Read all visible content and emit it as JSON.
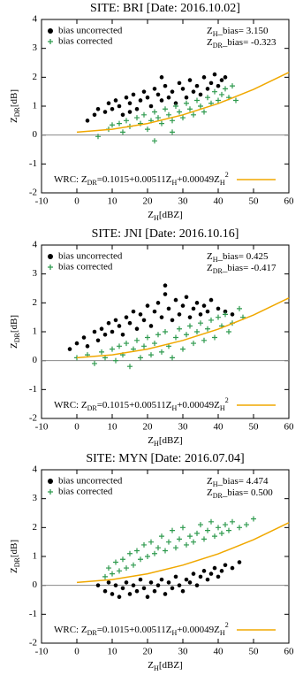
{
  "chart_data": [
    {
      "type": "scatter",
      "title": "SITE: BRI [Date: 2016.10.02]",
      "xlabel": [
        {
          "text": "Z"
        },
        {
          "text": "H",
          "pos": "sub"
        },
        {
          "text": "[dBZ]"
        }
      ],
      "ylabel": [
        {
          "text": "Z"
        },
        {
          "text": "DR",
          "pos": "sub"
        },
        {
          "text": "[dB]"
        }
      ],
      "xlim": [
        -10,
        60
      ],
      "xticks": [
        -10,
        0,
        10,
        20,
        30,
        40,
        50,
        60
      ],
      "ylim": [
        -2,
        4
      ],
      "yticks": [
        -2,
        -1,
        0,
        1,
        2,
        3,
        4
      ],
      "zero_line": 0,
      "annotations": [
        [
          {
            "text": "Z"
          },
          {
            "text": "H",
            "pos": "sub"
          },
          {
            "text": "_bias= 3.150"
          }
        ],
        [
          {
            "text": "Z"
          },
          {
            "text": "DR",
            "pos": "sub"
          },
          {
            "text": "_bias= -0.323"
          }
        ]
      ],
      "series": [
        {
          "name": "bias uncorrected",
          "color": "#000000",
          "marker": "circle",
          "x": [
            3,
            5,
            6,
            8,
            9,
            10,
            11,
            12,
            13,
            14,
            15,
            16,
            17,
            18,
            19,
            20,
            21,
            22,
            23,
            24,
            25,
            26,
            27,
            28,
            29,
            30,
            31,
            32,
            33,
            34,
            35,
            36,
            37,
            38,
            39,
            40,
            41,
            42,
            24,
            15
          ],
          "values": [
            0.5,
            0.7,
            0.9,
            0.8,
            1.1,
            0.9,
            1.2,
            1.0,
            0.7,
            1.3,
            1.1,
            1.4,
            0.9,
            1.2,
            1.5,
            1.3,
            1.0,
            1.6,
            1.4,
            1.2,
            1.7,
            1.3,
            1.5,
            1.1,
            1.8,
            1.6,
            1.3,
            1.9,
            1.5,
            1.7,
            1.4,
            2.0,
            1.6,
            1.8,
            2.1,
            1.7,
            1.9,
            2.0,
            2.0,
            0.8
          ]
        },
        {
          "name": "bias corrected",
          "color": "#2e9a4e",
          "marker": "plus",
          "x": [
            6,
            9,
            10,
            12,
            13,
            14,
            15,
            17,
            18,
            19,
            20,
            21,
            22,
            23,
            24,
            25,
            26,
            27,
            28,
            29,
            30,
            31,
            32,
            33,
            34,
            35,
            36,
            37,
            38,
            39,
            40,
            41,
            42,
            43,
            44,
            45,
            22,
            27
          ],
          "values": [
            -0.05,
            0.2,
            0.35,
            0.4,
            0.1,
            0.5,
            0.3,
            0.6,
            0.4,
            0.7,
            0.2,
            0.5,
            0.8,
            0.6,
            0.4,
            0.9,
            0.7,
            0.5,
            1.0,
            0.8,
            0.6,
            1.1,
            0.9,
            0.7,
            1.2,
            1.0,
            0.8,
            1.3,
            1.1,
            1.5,
            1.2,
            1.4,
            1.6,
            1.3,
            1.7,
            1.2,
            -0.2,
            0.1
          ]
        }
      ],
      "fit": {
        "color": "#f0a800",
        "name": [
          {
            "text": "WRC: Z"
          },
          {
            "text": "DR",
            "pos": "sub"
          },
          {
            "text": "=0.1015+0.00511Z"
          },
          {
            "text": "H",
            "pos": "sub"
          },
          {
            "text": "+0.00049Z"
          },
          {
            "text": "H",
            "pos": "sub"
          },
          {
            "text": "2",
            "pos": "super"
          }
        ],
        "x": [
          0,
          10,
          20,
          30,
          40,
          50,
          60
        ],
        "values": [
          0.1,
          0.2,
          0.4,
          0.7,
          1.09,
          1.58,
          2.17
        ]
      }
    },
    {
      "type": "scatter",
      "title": "SITE: JNI [Date: 2016.10.16]",
      "xlabel": [
        {
          "text": "Z"
        },
        {
          "text": "H",
          "pos": "sub"
        },
        {
          "text": "[dBZ]"
        }
      ],
      "ylabel": [
        {
          "text": "Z"
        },
        {
          "text": "DR",
          "pos": "sub"
        },
        {
          "text": "[dB]"
        }
      ],
      "xlim": [
        -10,
        60
      ],
      "xticks": [
        -10,
        0,
        10,
        20,
        30,
        40,
        50,
        60
      ],
      "ylim": [
        -2,
        4
      ],
      "yticks": [
        -2,
        -1,
        0,
        1,
        2,
        3,
        4
      ],
      "zero_line": 0,
      "annotations": [
        [
          {
            "text": "Z"
          },
          {
            "text": "H",
            "pos": "sub"
          },
          {
            "text": "_bias= 0.425"
          }
        ],
        [
          {
            "text": "Z"
          },
          {
            "text": "DR",
            "pos": "sub"
          },
          {
            "text": "_bias= -0.417"
          }
        ]
      ],
      "series": [
        {
          "name": "bias uncorrected",
          "color": "#000000",
          "marker": "circle",
          "x": [
            -2,
            0,
            2,
            3,
            5,
            6,
            7,
            8,
            9,
            10,
            11,
            12,
            13,
            14,
            15,
            16,
            17,
            18,
            19,
            20,
            21,
            22,
            23,
            24,
            25,
            26,
            27,
            28,
            29,
            30,
            31,
            32,
            33,
            34,
            35,
            36,
            37,
            38,
            40,
            42,
            44,
            25
          ],
          "values": [
            0.4,
            0.6,
            0.8,
            0.5,
            1.0,
            0.7,
            1.1,
            0.9,
            1.3,
            1.0,
            1.4,
            1.2,
            0.9,
            1.5,
            1.3,
            1.7,
            1.1,
            1.6,
            1.4,
            1.9,
            1.2,
            1.7,
            2.0,
            1.5,
            2.6,
            1.8,
            1.4,
            2.1,
            1.6,
            1.9,
            2.2,
            1.5,
            1.8,
            2.0,
            1.6,
            1.9,
            1.7,
            2.1,
            1.8,
            1.7,
            1.6,
            2.3
          ]
        },
        {
          "name": "bias corrected",
          "color": "#2e9a4e",
          "marker": "plus",
          "x": [
            0,
            3,
            5,
            7,
            8,
            10,
            11,
            12,
            13,
            14,
            15,
            16,
            17,
            18,
            19,
            20,
            21,
            22,
            23,
            24,
            25,
            26,
            27,
            28,
            29,
            30,
            31,
            32,
            33,
            34,
            35,
            36,
            37,
            38,
            39,
            40,
            41,
            42,
            43,
            44,
            46,
            47
          ],
          "values": [
            0.1,
            0.2,
            -0.1,
            0.3,
            0.1,
            0.4,
            0.0,
            0.5,
            0.2,
            0.6,
            -0.2,
            0.4,
            0.7,
            0.1,
            0.5,
            0.8,
            0.2,
            0.6,
            0.9,
            0.3,
            1.0,
            0.5,
            0.1,
            0.8,
            1.1,
            0.4,
            0.9,
            1.2,
            0.6,
            1.0,
            1.3,
            0.7,
            1.1,
            1.4,
            0.8,
            1.5,
            1.2,
            1.6,
            1.0,
            1.3,
            1.8,
            1.5
          ]
        }
      ],
      "fit": {
        "color": "#f0a800",
        "name": [
          {
            "text": "WRC: Z"
          },
          {
            "text": "DR",
            "pos": "sub"
          },
          {
            "text": "=0.1015+0.00511Z"
          },
          {
            "text": "H",
            "pos": "sub"
          },
          {
            "text": "+0.00049Z"
          },
          {
            "text": "H",
            "pos": "sub"
          },
          {
            "text": "2",
            "pos": "super"
          }
        ],
        "x": [
          0,
          10,
          20,
          30,
          40,
          50,
          60
        ],
        "values": [
          0.1,
          0.2,
          0.4,
          0.7,
          1.09,
          1.58,
          2.17
        ]
      }
    },
    {
      "type": "scatter",
      "title": "SITE: MYN [Date: 2016.07.04]",
      "xlabel": [
        {
          "text": "Z"
        },
        {
          "text": "H",
          "pos": "sub"
        },
        {
          "text": "[dBZ]"
        }
      ],
      "ylabel": [
        {
          "text": "Z"
        },
        {
          "text": "DR",
          "pos": "sub"
        },
        {
          "text": "[dB]"
        }
      ],
      "xlim": [
        -10,
        60
      ],
      "xticks": [
        -10,
        0,
        10,
        20,
        30,
        40,
        50,
        60
      ],
      "ylim": [
        -2,
        4
      ],
      "yticks": [
        -2,
        -1,
        0,
        1,
        2,
        3,
        4
      ],
      "zero_line": 0,
      "annotations": [
        [
          {
            "text": "Z"
          },
          {
            "text": "H",
            "pos": "sub"
          },
          {
            "text": "_bias= 4.474"
          }
        ],
        [
          {
            "text": "Z"
          },
          {
            "text": "DR",
            "pos": "sub"
          },
          {
            "text": "_bias= 0.500"
          }
        ]
      ],
      "series": [
        {
          "name": "bias uncorrected",
          "color": "#000000",
          "marker": "circle",
          "x": [
            6,
            8,
            9,
            10,
            11,
            12,
            13,
            14,
            15,
            16,
            17,
            18,
            19,
            20,
            21,
            22,
            23,
            24,
            25,
            26,
            27,
            28,
            29,
            30,
            31,
            32,
            33,
            34,
            35,
            36,
            37,
            38,
            39,
            40,
            41,
            42,
            44,
            46
          ],
          "values": [
            0.0,
            -0.2,
            0.1,
            -0.3,
            0.0,
            -0.4,
            -0.1,
            0.1,
            -0.3,
            0.0,
            -0.2,
            0.2,
            -0.1,
            -0.4,
            0.1,
            -0.2,
            0.0,
            0.2,
            -0.3,
            0.1,
            -0.1,
            0.3,
            0.0,
            -0.2,
            0.2,
            0.1,
            0.4,
            0.0,
            0.3,
            0.5,
            0.2,
            0.4,
            0.6,
            0.3,
            0.5,
            0.7,
            0.6,
            0.8
          ]
        },
        {
          "name": "bias corrected",
          "color": "#2e9a4e",
          "marker": "plus",
          "x": [
            8,
            9,
            10,
            11,
            12,
            13,
            14,
            15,
            16,
            17,
            18,
            19,
            20,
            21,
            22,
            23,
            24,
            25,
            26,
            27,
            28,
            29,
            30,
            31,
            32,
            33,
            34,
            35,
            36,
            37,
            38,
            39,
            40,
            41,
            42,
            43,
            44,
            46,
            48,
            50
          ],
          "values": [
            0.3,
            0.6,
            0.4,
            0.8,
            0.5,
            0.9,
            0.6,
            1.1,
            0.7,
            1.2,
            0.9,
            1.4,
            1.0,
            1.5,
            1.1,
            1.3,
            1.7,
            1.2,
            1.5,
            1.9,
            1.3,
            1.6,
            2.0,
            1.4,
            1.7,
            1.5,
            1.8,
            2.1,
            1.6,
            1.9,
            2.2,
            1.7,
            2.0,
            1.8,
            2.1,
            1.9,
            2.2,
            2.0,
            2.1,
            2.3
          ]
        }
      ],
      "fit": {
        "color": "#f0a800",
        "name": [
          {
            "text": "WRC: Z"
          },
          {
            "text": "DR",
            "pos": "sub"
          },
          {
            "text": "=0.1015+0.00511Z"
          },
          {
            "text": "H",
            "pos": "sub"
          },
          {
            "text": "+0.00049Z"
          },
          {
            "text": "H",
            "pos": "sub"
          },
          {
            "text": "2",
            "pos": "super"
          }
        ],
        "x": [
          0,
          10,
          20,
          30,
          40,
          50,
          60
        ],
        "values": [
          0.1,
          0.2,
          0.4,
          0.7,
          1.09,
          1.58,
          2.17
        ]
      }
    }
  ]
}
